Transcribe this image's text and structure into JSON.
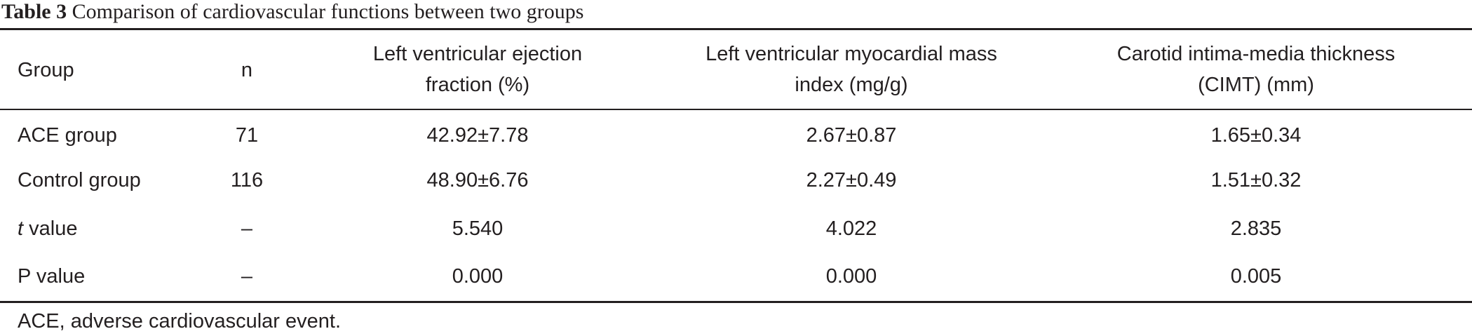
{
  "caption": {
    "label": "Table 3",
    "text": "Comparison of cardiovascular functions between two groups"
  },
  "table": {
    "headers": [
      "Group",
      "n",
      "Left ventricular ejection fraction (%)",
      "Left ventricular myocardial mass index (mg/g)",
      "Carotid intima-media thickness (CIMT) (mm)"
    ],
    "rows": [
      {
        "label_prefix": "",
        "label": "ACE group",
        "cells": [
          "71",
          "42.92±7.78",
          "2.67±0.87",
          "1.65±0.34"
        ]
      },
      {
        "label_prefix": "",
        "label": "Control group",
        "cells": [
          "116",
          "48.90±6.76",
          "2.27±0.49",
          "1.51±0.32"
        ]
      },
      {
        "label_prefix": "t",
        "label": " value",
        "cells": [
          "–",
          "5.540",
          "4.022",
          "2.835"
        ]
      },
      {
        "label_prefix": "",
        "label": "P value",
        "cells": [
          "–",
          "0.000",
          "0.000",
          "0.005"
        ]
      }
    ]
  },
  "footnote": "ACE, adverse cardiovascular event."
}
